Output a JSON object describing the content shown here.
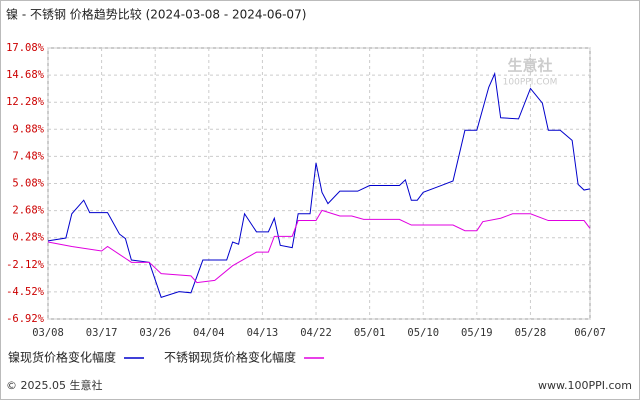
{
  "chart_data": {
    "type": "line",
    "title": "镍 - 不锈钢 价格趋势比较 (2024-03-08 - 2024-06-07)",
    "watermark": "生意社",
    "watermark_sub": "100PPI.COM",
    "footer_left": "© 2025.05 生意社",
    "footer_right": "www.100PPI.com",
    "xlim": [
      0,
      91
    ],
    "xticks": [
      {
        "value": 0,
        "label": "03/08"
      },
      {
        "value": 9,
        "label": "03/17"
      },
      {
        "value": 18,
        "label": "03/26"
      },
      {
        "value": 27,
        "label": "04/04"
      },
      {
        "value": 36,
        "label": "04/13"
      },
      {
        "value": 45,
        "label": "04/22"
      },
      {
        "value": 54,
        "label": "05/01"
      },
      {
        "value": 63,
        "label": "05/10"
      },
      {
        "value": 72,
        "label": "05/19"
      },
      {
        "value": 81,
        "label": "05/28"
      },
      {
        "value": 91,
        "label": "06/07"
      }
    ],
    "ylim": [
      -6.92,
      17.08
    ],
    "yticks": [
      {
        "value": 17.08,
        "label": "17.08%"
      },
      {
        "value": 14.68,
        "label": "14.68%"
      },
      {
        "value": 12.28,
        "label": "12.28%"
      },
      {
        "value": 9.88,
        "label": "9.88%"
      },
      {
        "value": 7.48,
        "label": "7.48%"
      },
      {
        "value": 5.08,
        "label": "5.08%"
      },
      {
        "value": 2.68,
        "label": "2.68%"
      },
      {
        "value": 0.28,
        "label": "0.28%"
      },
      {
        "value": -2.12,
        "label": "-2.12%"
      },
      {
        "value": -4.52,
        "label": "-4.52%"
      },
      {
        "value": -6.92,
        "label": "-6.92%"
      }
    ],
    "grid": true,
    "series": [
      {
        "name": "镍现货价格变化幅度",
        "color": "#0000cc",
        "x": [
          0,
          3,
          4,
          6,
          7,
          10,
          12,
          13,
          14,
          17,
          19,
          22,
          24,
          26,
          30,
          31,
          32,
          33,
          35,
          37,
          38,
          39,
          41,
          42,
          44,
          45,
          46,
          47,
          49,
          52,
          54,
          59,
          60,
          61,
          62,
          63,
          66,
          68,
          70,
          72,
          74,
          75,
          76,
          79,
          81,
          83,
          84,
          86,
          88,
          89,
          90,
          91
        ],
        "values": [
          0,
          0.25,
          2.4,
          3.6,
          2.5,
          2.5,
          0.6,
          0.2,
          -1.7,
          -1.9,
          -5.0,
          -4.5,
          -4.6,
          -1.7,
          -1.7,
          -0.1,
          -0.3,
          2.4,
          0.8,
          0.8,
          2.0,
          -0.4,
          -0.6,
          2.4,
          2.4,
          6.9,
          4.3,
          3.3,
          4.4,
          4.4,
          4.9,
          4.9,
          5.4,
          3.6,
          3.6,
          4.3,
          4.9,
          5.3,
          9.8,
          9.8,
          13.6,
          14.8,
          10.9,
          10.8,
          13.5,
          12.2,
          9.8,
          9.8,
          8.9,
          5.0,
          4.5,
          4.6
        ]
      },
      {
        "name": "不锈钢现货价格变化幅度",
        "color": "#e000e0",
        "x": [
          0,
          4,
          9,
          10,
          14,
          17,
          19,
          24,
          25,
          28,
          31,
          35,
          37,
          38,
          41,
          42,
          45,
          46,
          49,
          51,
          53,
          59,
          61,
          68,
          70,
          72,
          73,
          76,
          78,
          81,
          84,
          90,
          91
        ],
        "values": [
          -0.1,
          -0.5,
          -0.9,
          -0.5,
          -1.9,
          -1.9,
          -2.9,
          -3.1,
          -3.7,
          -3.5,
          -2.2,
          -1.0,
          -1.0,
          0.4,
          0.4,
          1.8,
          1.8,
          2.7,
          2.2,
          2.2,
          1.9,
          1.9,
          1.4,
          1.4,
          0.9,
          0.9,
          1.7,
          2.0,
          2.4,
          2.4,
          1.8,
          1.8,
          1.1
        ]
      }
    ]
  }
}
